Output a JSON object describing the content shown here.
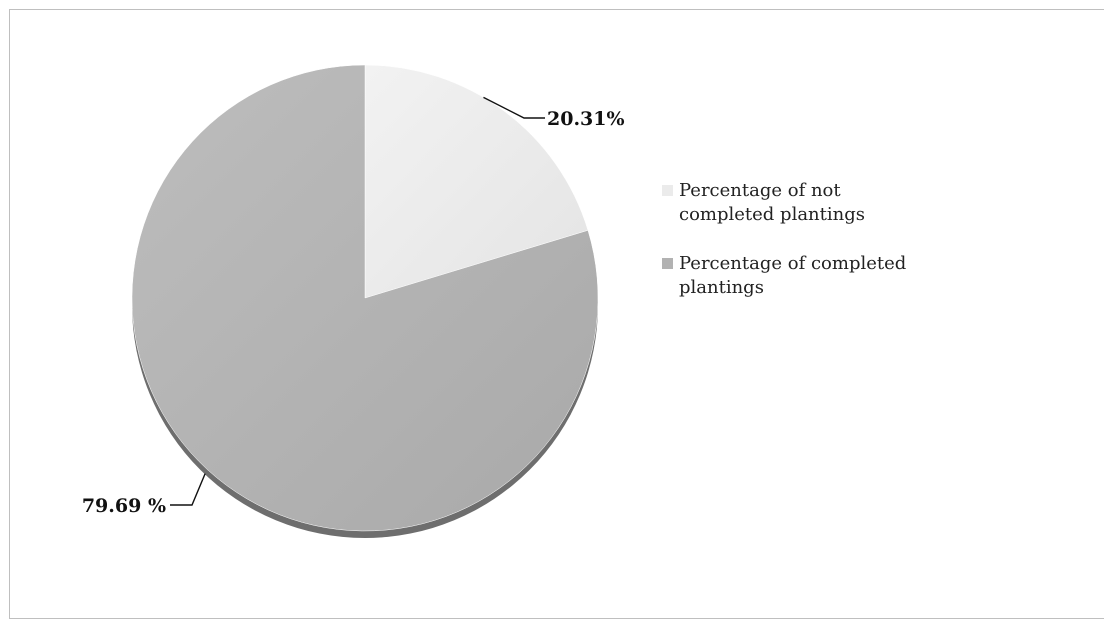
{
  "chart_data": {
    "type": "pie",
    "title": "",
    "slices": [
      {
        "label": "Percentage of not completed plantings",
        "value": 20.31,
        "data_label": "20.31%",
        "color": "#ebebeb"
      },
      {
        "label": "Percentage of completed plantings",
        "value": 79.69,
        "data_label": "79.69 %",
        "color": "#b2b2b2"
      }
    ],
    "legend_position": "right",
    "start_angle": "12 o'clock, clockwise",
    "style": "3D-shaded grayscale"
  }
}
